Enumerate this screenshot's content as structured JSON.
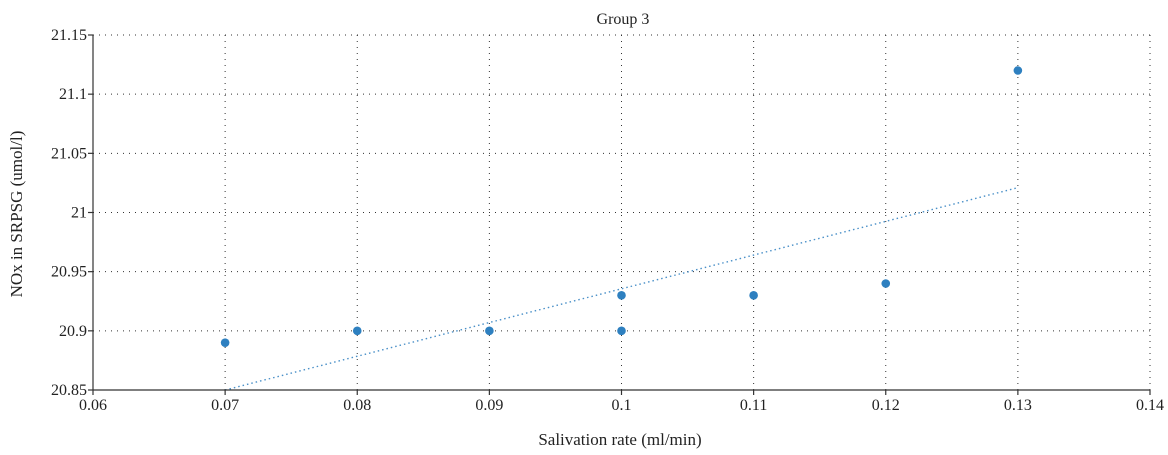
{
  "chart_data": {
    "type": "scatter",
    "title": "Group 3",
    "xlabel": "Salivation rate (ml/min)",
    "ylabel": "NOx in SRPSG (umol/l)",
    "xlim": [
      0.06,
      0.14
    ],
    "ylim": [
      20.85,
      21.15
    ],
    "x_ticks": [
      0.06,
      0.07,
      0.08,
      0.09,
      0.1,
      0.11,
      0.12,
      0.13,
      0.14
    ],
    "x_tick_labels": [
      "0.06",
      "0.07",
      "0.08",
      "0.09",
      "0.1",
      "0.11",
      "0.12",
      "0.13",
      "0.14"
    ],
    "y_ticks": [
      20.85,
      20.9,
      20.95,
      21,
      21.05,
      21.1,
      21.15
    ],
    "y_tick_labels": [
      "20.85",
      "20.9",
      "20.95",
      "21",
      "21.05",
      "21.1",
      "21.15"
    ],
    "grid": true,
    "series": [
      {
        "points": [
          {
            "x": 0.07,
            "y": 20.89
          },
          {
            "x": 0.08,
            "y": 20.9
          },
          {
            "x": 0.09,
            "y": 20.9
          },
          {
            "x": 0.1,
            "y": 20.93
          },
          {
            "x": 0.1,
            "y": 20.9
          },
          {
            "x": 0.11,
            "y": 20.93
          },
          {
            "x": 0.12,
            "y": 20.94
          },
          {
            "x": 0.13,
            "y": 21.12
          }
        ]
      }
    ],
    "trendline": {
      "type": "linear",
      "style": "dotted",
      "start": {
        "x": 0.07,
        "y": 20.85
      },
      "end": {
        "x": 0.13,
        "y": 21.021
      }
    },
    "colors": {
      "marker": "#2e80c0",
      "trendline": "#4a90c8"
    }
  }
}
